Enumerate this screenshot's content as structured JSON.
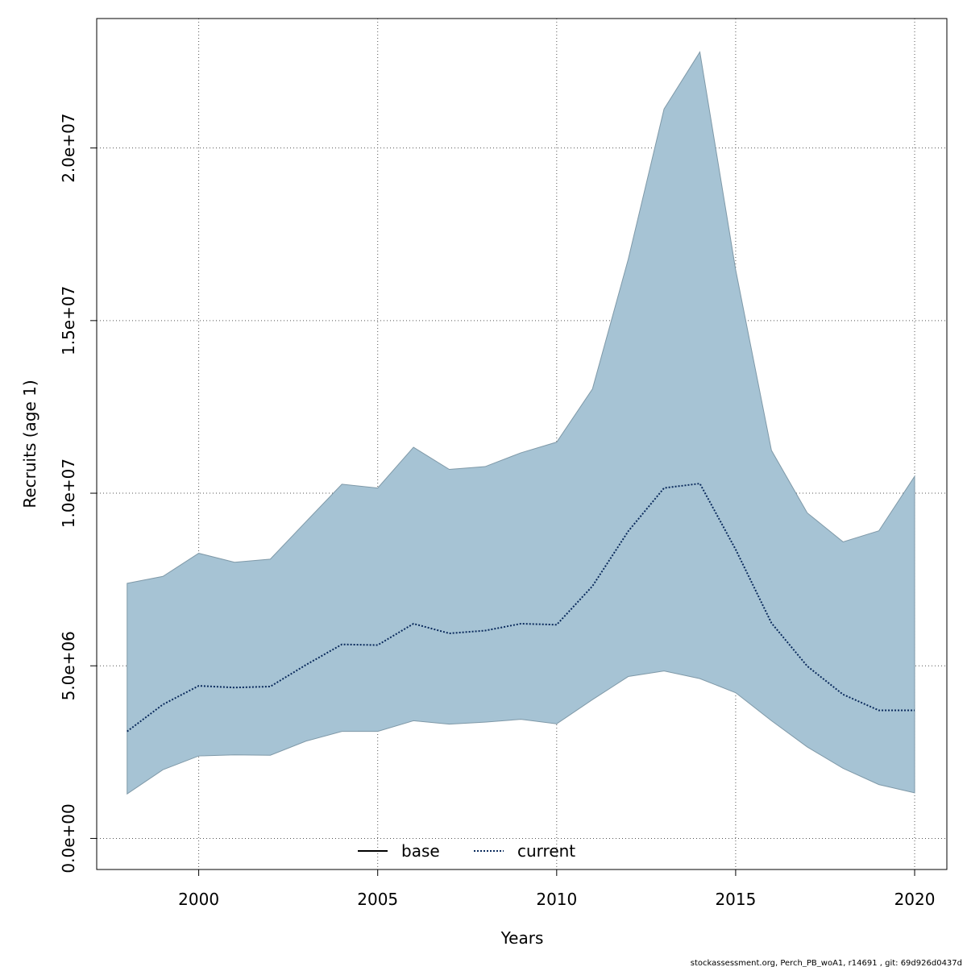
{
  "chart_data": {
    "type": "area",
    "title": "",
    "xlabel": "Years",
    "ylabel": "Recruits (age 1)",
    "xlim": [
      1997.15,
      2020.9
    ],
    "ylim": [
      -900000,
      23750000
    ],
    "x_ticks": [
      2000,
      2005,
      2010,
      2015,
      2020
    ],
    "x_tick_labels": [
      "2000",
      "2005",
      "2010",
      "2015",
      "2020"
    ],
    "y_ticks": [
      0,
      5000000,
      10000000,
      15000000,
      20000000
    ],
    "y_tick_labels": [
      "0.0e+00",
      "5.0e+06",
      "1.0e+07",
      "1.5e+07",
      "2.0e+07"
    ],
    "grid": true,
    "legend_position": "bottom-center",
    "colors": {
      "band_fill": "#A6C3D4",
      "band_stroke": "#7F99A8",
      "current_line": "#0A2A5C",
      "base_line": "#000000",
      "grid": "#555555"
    },
    "x": [
      1998,
      1999,
      2000,
      2001,
      2002,
      2003,
      2004,
      2005,
      2006,
      2007,
      2008,
      2009,
      2010,
      2011,
      2012,
      2013,
      2014,
      2015,
      2016,
      2017,
      2018,
      2019,
      2020
    ],
    "series": [
      {
        "name": "current",
        "style": "dotted",
        "values": [
          3100000,
          3880000,
          4420000,
          4370000,
          4400000,
          5030000,
          5620000,
          5600000,
          6220000,
          5940000,
          6020000,
          6220000,
          6190000,
          7310000,
          8900000,
          10150000,
          10280000,
          8370000,
          6240000,
          4990000,
          4170000,
          3710000,
          3710000
        ],
        "upper": [
          7390000,
          7590000,
          8260000,
          8000000,
          8090000,
          9180000,
          10260000,
          10150000,
          11330000,
          10690000,
          10770000,
          11170000,
          11480000,
          13020000,
          16780000,
          21130000,
          22780000,
          16470000,
          11240000,
          9430000,
          8590000,
          8910000,
          10490000
        ],
        "lower": [
          1290000,
          1990000,
          2390000,
          2420000,
          2410000,
          2820000,
          3100000,
          3100000,
          3410000,
          3310000,
          3370000,
          3450000,
          3320000,
          4020000,
          4690000,
          4850000,
          4630000,
          4220000,
          3410000,
          2650000,
          2030000,
          1560000,
          1320000
        ]
      }
    ],
    "legend": [
      {
        "name": "base",
        "style": "solid"
      },
      {
        "name": "current",
        "style": "dotted"
      }
    ]
  },
  "footer": "stockassessment.org, Perch_PB_woA1, r14691 , git: 69d926d0437d"
}
